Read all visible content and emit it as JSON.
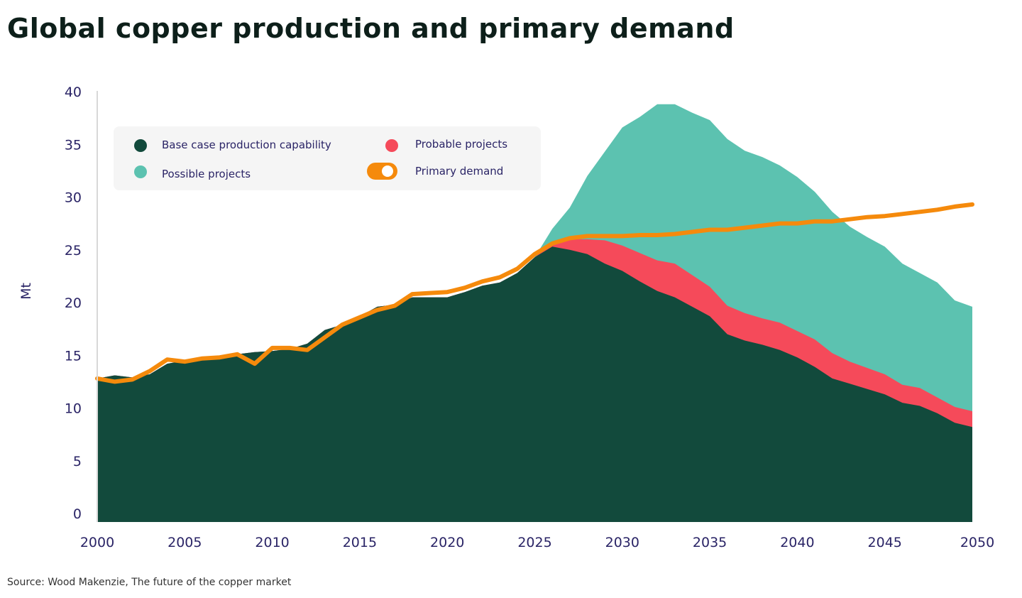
{
  "title": "Global copper production and primary demand",
  "source": "Source: Wood Makenzie, The future of the copper market",
  "chart_data": {
    "type": "area",
    "title": "Global copper production and primary demand",
    "ylabel": "Mt",
    "xlabel": "",
    "xlim": [
      2000,
      2050
    ],
    "ylim": [
      0,
      40
    ],
    "x_ticks": [
      2000,
      2005,
      2010,
      2015,
      2020,
      2025,
      2030,
      2035,
      2040,
      2045,
      2050
    ],
    "y_ticks": [
      0,
      5,
      10,
      15,
      20,
      25,
      30,
      35,
      40
    ],
    "grid": false,
    "legend_position": "top-left",
    "stacked": true,
    "x": [
      2000,
      2001,
      2002,
      2003,
      2004,
      2005,
      2006,
      2007,
      2008,
      2009,
      2010,
      2011,
      2012,
      2013,
      2014,
      2015,
      2016,
      2017,
      2018,
      2019,
      2020,
      2021,
      2022,
      2023,
      2024,
      2025,
      2026,
      2027,
      2028,
      2029,
      2030,
      2031,
      2032,
      2033,
      2034,
      2035,
      2036,
      2037,
      2038,
      2039,
      2040,
      2041,
      2042,
      2043,
      2044,
      2045,
      2046,
      2047,
      2048,
      2049,
      2050
    ],
    "series": [
      {
        "name": "Base case production capability",
        "type": "area",
        "color": "#124a3c",
        "values": [
          12.8,
          13.1,
          12.9,
          13.2,
          14.2,
          14.5,
          14.7,
          14.9,
          15.1,
          15.3,
          15.4,
          15.6,
          16.1,
          17.4,
          17.9,
          18.7,
          19.6,
          19.8,
          20.5,
          20.5,
          20.5,
          21.0,
          21.6,
          21.9,
          22.8,
          24.3,
          25.3,
          25.0,
          24.6,
          23.7,
          23.0,
          22.0,
          21.1,
          20.5,
          19.6,
          18.7,
          17.0,
          16.4,
          16.0,
          15.5,
          14.8,
          13.9,
          12.8,
          12.3,
          11.8,
          11.3,
          10.5,
          10.2,
          9.5,
          8.6,
          8.2
        ]
      },
      {
        "name": "Probable projects",
        "type": "area",
        "color": "#f54a5a",
        "values": [
          0,
          0,
          0,
          0,
          0,
          0,
          0,
          0,
          0,
          0,
          0,
          0,
          0,
          0,
          0,
          0,
          0,
          0,
          0,
          0,
          0,
          0,
          0,
          0,
          0,
          0,
          0.3,
          1.0,
          1.4,
          2.2,
          2.4,
          2.7,
          2.9,
          3.2,
          3.0,
          2.8,
          2.7,
          2.6,
          2.5,
          2.6,
          2.5,
          2.6,
          2.4,
          2.1,
          2.0,
          1.9,
          1.7,
          1.7,
          1.5,
          1.5,
          1.5
        ]
      },
      {
        "name": "Possible projects",
        "type": "area",
        "color": "#5cc2b0",
        "values": [
          0,
          0,
          0,
          0,
          0,
          0,
          0,
          0,
          0,
          0,
          0,
          0,
          0,
          0,
          0,
          0,
          0,
          0,
          0,
          0,
          0,
          0,
          0,
          0,
          0,
          0,
          1.4,
          3.0,
          6.0,
          8.4,
          11.2,
          12.9,
          14.8,
          15.1,
          15.4,
          15.8,
          15.8,
          15.4,
          15.3,
          14.9,
          14.6,
          14.0,
          13.4,
          12.8,
          12.4,
          12.1,
          11.5,
          10.9,
          10.9,
          10.1,
          9.9
        ]
      },
      {
        "name": "Primary demand",
        "type": "line",
        "color": "#f58a0c",
        "values": [
          12.8,
          12.5,
          12.7,
          13.5,
          14.6,
          14.4,
          14.7,
          14.8,
          15.1,
          14.2,
          15.7,
          15.7,
          15.5,
          16.7,
          17.9,
          18.6,
          19.3,
          19.7,
          20.8,
          20.9,
          21.0,
          21.4,
          22.0,
          22.4,
          23.2,
          24.6,
          25.6,
          26.1,
          26.3,
          26.3,
          26.3,
          26.4,
          26.4,
          26.5,
          26.7,
          26.9,
          26.9,
          27.1,
          27.3,
          27.5,
          27.5,
          27.7,
          27.7,
          27.9,
          28.1,
          28.2,
          28.4,
          28.6,
          28.8,
          29.1,
          29.3
        ]
      }
    ],
    "legend": [
      {
        "label": "Base case production capability",
        "color": "#124a3c",
        "marker": "dot"
      },
      {
        "label": "Probable projects",
        "color": "#f54a5a",
        "marker": "dot"
      },
      {
        "label": "Possible projects",
        "color": "#5cc2b0",
        "marker": "dot"
      },
      {
        "label": "Primary demand",
        "color": "#f58a0c",
        "marker": "toggle"
      }
    ]
  }
}
